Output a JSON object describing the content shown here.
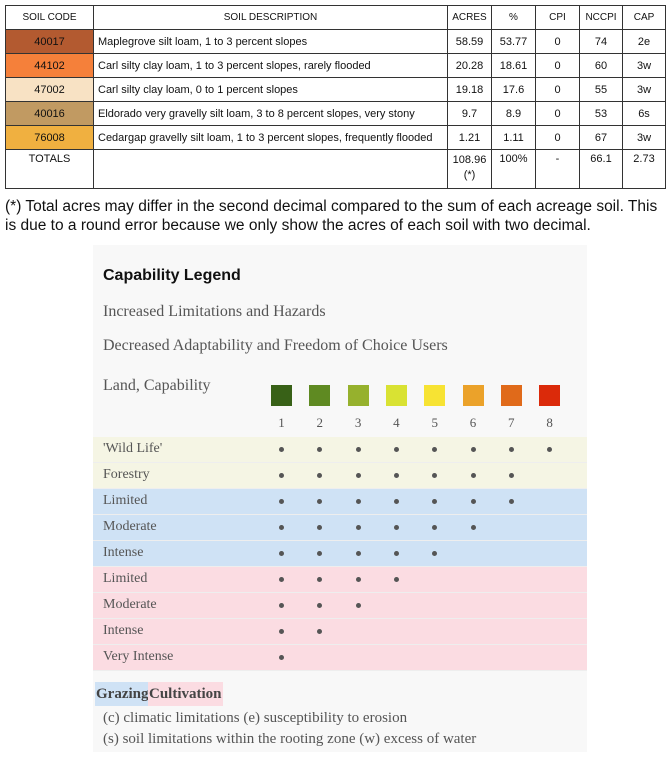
{
  "table": {
    "headers": [
      "SOIL CODE",
      "SOIL DESCRIPTION",
      "ACRES",
      "%",
      "CPI",
      "NCCPI",
      "CAP"
    ],
    "rows": [
      {
        "code": "40017",
        "color": "#b35a30",
        "desc": "Maplegrove silt loam, 1 to 3 percent slopes",
        "acres": "58.59",
        "pct": "53.77",
        "cpi": "0",
        "nccpi": "74",
        "cap": "2e"
      },
      {
        "code": "44102",
        "color": "#f5803a",
        "desc": "Carl silty clay loam, 1 to 3 percent slopes, rarely flooded",
        "acres": "20.28",
        "pct": "18.61",
        "cpi": "0",
        "nccpi": "60",
        "cap": "3w"
      },
      {
        "code": "47002",
        "color": "#f8e2c4",
        "desc": "Carl silty clay loam, 0 to 1 percent slopes",
        "acres": "19.18",
        "pct": "17.6",
        "cpi": "0",
        "nccpi": "55",
        "cap": "3w"
      },
      {
        "code": "40016",
        "color": "#c19a62",
        "desc": "Eldorado very gravelly silt loam, 3 to 8 percent slopes, very stony",
        "acres": "9.7",
        "pct": "8.9",
        "cpi": "0",
        "nccpi": "53",
        "cap": "6s"
      },
      {
        "code": "76008",
        "color": "#f0b040",
        "desc": "Cedargap gravelly silt loam, 1 to 3 percent slopes, frequently flooded",
        "acres": "1.21",
        "pct": "1.11",
        "cpi": "0",
        "nccpi": "67",
        "cap": "3w"
      }
    ],
    "totals": {
      "label": "TOTALS",
      "acres": "108.96(*)",
      "pct": "100%",
      "cpi": "-",
      "nccpi": "66.1",
      "cap": "2.73"
    }
  },
  "footnote": "(*) Total acres may differ in the second decimal compared to the sum of each acreage soil. This is due to a round error because we only show the acres of each soil with two decimal.",
  "legend": {
    "title": "Capability Legend",
    "line1": "Increased Limitations and Hazards",
    "line2": "Decreased Adaptability and Freedom of Choice Users",
    "line3": "Land, Capability",
    "classes": [
      {
        "num": "1",
        "color": "#386117"
      },
      {
        "num": "2",
        "color": "#5f8a22"
      },
      {
        "num": "3",
        "color": "#96b12d"
      },
      {
        "num": "4",
        "color": "#d9e233"
      },
      {
        "num": "5",
        "color": "#f7e333"
      },
      {
        "num": "6",
        "color": "#eba22a"
      },
      {
        "num": "7",
        "color": "#e06a1a"
      },
      {
        "num": "8",
        "color": "#db2a0a"
      }
    ],
    "rows": [
      {
        "label": "'Wild Life'",
        "group": "other",
        "max": 8
      },
      {
        "label": "Forestry",
        "group": "other",
        "max": 7
      },
      {
        "label": "Limited",
        "group": "grazing",
        "max": 7
      },
      {
        "label": "Moderate",
        "group": "grazing",
        "max": 6
      },
      {
        "label": "Intense",
        "group": "grazing",
        "max": 5
      },
      {
        "label": "Limited",
        "group": "cultivation",
        "max": 4
      },
      {
        "label": "Moderate",
        "group": "cultivation",
        "max": 3
      },
      {
        "label": "Intense",
        "group": "cultivation",
        "max": 2
      },
      {
        "label": "Very Intense",
        "group": "cultivation",
        "max": 1
      }
    ],
    "group_colors": {
      "other": "#f5f5e4",
      "grazing": "#cfe2f5",
      "cultivation": "#fbdce2"
    },
    "grazing": "Grazing",
    "cultivation": "Cultivation",
    "note1": "(c) climatic limitations (e) susceptibility to erosion",
    "note2": "(s) soil limitations within the rooting zone (w) excess of water"
  }
}
